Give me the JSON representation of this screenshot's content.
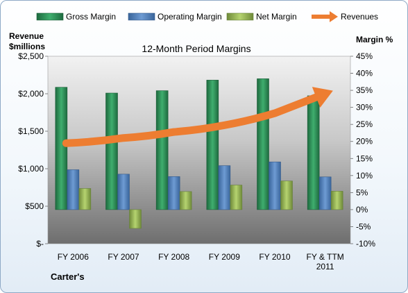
{
  "chart_data": {
    "type": "bar",
    "title": "12-Month Period Margins",
    "company": "Carter's",
    "categories": [
      "FY 2006",
      "FY 2007",
      "FY 2008",
      "FY 2009",
      "FY 2010",
      "FY & TTM 2011"
    ],
    "left_axis": {
      "label_line1": "Revenue",
      "label_line2": "$millions",
      "ylim": [
        0,
        2500
      ],
      "ticks": [
        0,
        500,
        1000,
        1500,
        2000,
        2500
      ],
      "tick_labels": [
        "$-",
        "$500",
        "$1,000",
        "$1,500",
        "$2,000",
        "$2,500"
      ]
    },
    "right_axis": {
      "label": "Margin %",
      "ylim": [
        -10,
        45
      ],
      "ticks": [
        -10,
        -5,
        0,
        5,
        10,
        15,
        20,
        25,
        30,
        35,
        40,
        45
      ],
      "tick_labels": [
        "-10%",
        "-5%",
        "0%",
        "5%",
        "10%",
        "15%",
        "20%",
        "25%",
        "30%",
        "35%",
        "40%",
        "45%"
      ]
    },
    "series": [
      {
        "name": "Gross Margin",
        "axis": "right",
        "color": "#2e8b57",
        "values": [
          35.9,
          34.2,
          34.9,
          38.0,
          38.4,
          33.4
        ]
      },
      {
        "name": "Operating Margin",
        "axis": "right",
        "color": "#4f81bd",
        "values": [
          11.7,
          10.4,
          9.7,
          12.9,
          14.0,
          9.6
        ]
      },
      {
        "name": "Net Margin",
        "axis": "right",
        "color": "#9bbb59",
        "values": [
          6.2,
          -5.5,
          5.3,
          7.2,
          8.4,
          5.4
        ]
      }
    ],
    "revenue_trend": {
      "name": "Revenues",
      "axis": "left",
      "color": "#ed7d31",
      "values": [
        1340,
        1410,
        1490,
        1580,
        1740,
        2000
      ]
    },
    "legend_position": "top",
    "grid": false
  }
}
